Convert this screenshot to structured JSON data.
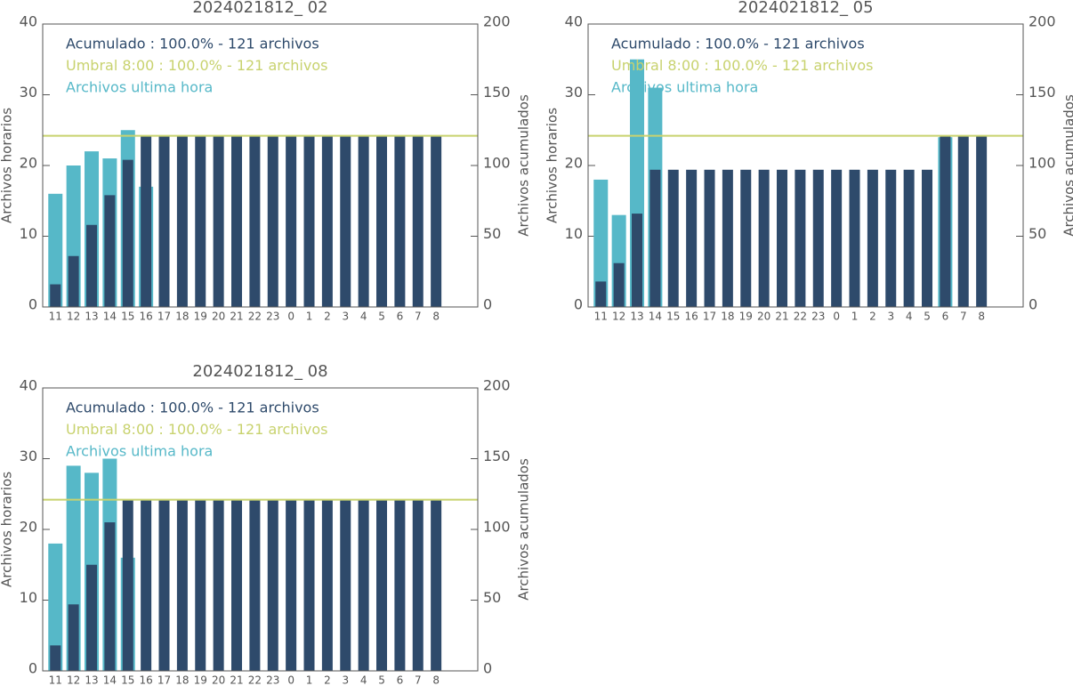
{
  "chart_data": [
    {
      "type": "bar",
      "title": "2024021812_ 02",
      "ylabel": "Archivos horarios",
      "y2label": "Archivos acumulados",
      "categories": [
        "11",
        "12",
        "13",
        "14",
        "15",
        "16",
        "17",
        "18",
        "19",
        "20",
        "21",
        "22",
        "23",
        "0",
        "1",
        "2",
        "3",
        "4",
        "5",
        "6",
        "7",
        "8"
      ],
      "ylim": [
        0,
        40
      ],
      "yticks": [
        0,
        10,
        20,
        30,
        40
      ],
      "y2lim": [
        0,
        200
      ],
      "y2ticks": [
        0,
        50,
        100,
        150,
        200
      ],
      "series": [
        {
          "name": "Archivos ultima hora",
          "color": "#56b8c8",
          "values": [
            16,
            20,
            22,
            21,
            25,
            17,
            0,
            0,
            0,
            0,
            0,
            0,
            0,
            0,
            0,
            0,
            0,
            0,
            0,
            0,
            0,
            0
          ]
        },
        {
          "name": "Acumulado : 100.0% - 121 archivos",
          "color": "#2e4a6b",
          "axis": "y2",
          "values": [
            16,
            36,
            58,
            79,
            104,
            121,
            121,
            121,
            121,
            121,
            121,
            121,
            121,
            121,
            121,
            121,
            121,
            121,
            121,
            121,
            121,
            121
          ]
        }
      ],
      "threshold": {
        "name": "Umbral 8:00 : 100.0% - 121 archivos",
        "color": "#c8d26e",
        "axis": "y2",
        "value": 121
      }
    },
    {
      "type": "bar",
      "title": "2024021812_ 05",
      "ylabel": "Archivos horarios",
      "y2label": "Archivos acumulados",
      "categories": [
        "11",
        "12",
        "13",
        "14",
        "15",
        "16",
        "17",
        "18",
        "19",
        "20",
        "21",
        "22",
        "23",
        "0",
        "1",
        "2",
        "3",
        "4",
        "5",
        "6",
        "7",
        "8"
      ],
      "ylim": [
        0,
        40
      ],
      "yticks": [
        0,
        10,
        20,
        30,
        40
      ],
      "y2lim": [
        0,
        200
      ],
      "y2ticks": [
        0,
        50,
        100,
        150,
        200
      ],
      "series": [
        {
          "name": "Archivos ultima hora",
          "color": "#56b8c8",
          "values": [
            18,
            13,
            35,
            31,
            0,
            0,
            0,
            0,
            0,
            0,
            0,
            0,
            0,
            0,
            0,
            0,
            0,
            0,
            0,
            24,
            0,
            0
          ]
        },
        {
          "name": "Acumulado : 100.0% - 121 archivos",
          "color": "#2e4a6b",
          "axis": "y2",
          "values": [
            18,
            31,
            66,
            97,
            97,
            97,
            97,
            97,
            97,
            97,
            97,
            97,
            97,
            97,
            97,
            97,
            97,
            97,
            97,
            121,
            121,
            121
          ]
        }
      ],
      "threshold": {
        "name": "Umbral 8:00 : 100.0% - 121 archivos",
        "color": "#c8d26e",
        "axis": "y2",
        "value": 121
      }
    },
    {
      "type": "bar",
      "title": "2024021812_ 08",
      "ylabel": "Archivos horarios",
      "y2label": "Archivos acumulados",
      "categories": [
        "11",
        "12",
        "13",
        "14",
        "15",
        "16",
        "17",
        "18",
        "19",
        "20",
        "21",
        "22",
        "23",
        "0",
        "1",
        "2",
        "3",
        "4",
        "5",
        "6",
        "7",
        "8"
      ],
      "ylim": [
        0,
        40
      ],
      "yticks": [
        0,
        10,
        20,
        30,
        40
      ],
      "y2lim": [
        0,
        200
      ],
      "y2ticks": [
        0,
        50,
        100,
        150,
        200
      ],
      "series": [
        {
          "name": "Archivos ultima hora",
          "color": "#56b8c8",
          "values": [
            18,
            29,
            28,
            30,
            16,
            0,
            0,
            0,
            0,
            0,
            0,
            0,
            0,
            0,
            0,
            0,
            0,
            0,
            0,
            0,
            0,
            0
          ]
        },
        {
          "name": "Acumulado : 100.0% - 121 archivos",
          "color": "#2e4a6b",
          "axis": "y2",
          "values": [
            18,
            47,
            75,
            105,
            121,
            121,
            121,
            121,
            121,
            121,
            121,
            121,
            121,
            121,
            121,
            121,
            121,
            121,
            121,
            121,
            121,
            121
          ]
        }
      ],
      "threshold": {
        "name": "Umbral 8:00 : 100.0% - 121 archivos",
        "color": "#c8d26e",
        "axis": "y2",
        "value": 121
      }
    }
  ]
}
